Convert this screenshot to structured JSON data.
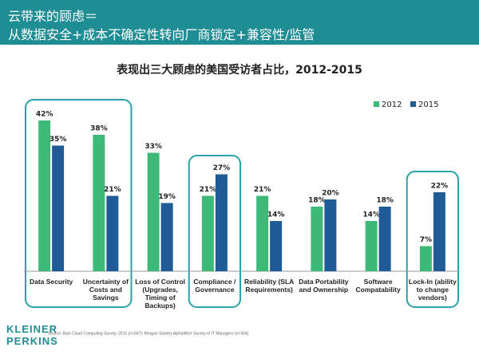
{
  "chart_data": {
    "type": "bar",
    "heading": [
      "云带来的顾虑＝",
      "从数据安全+成本不确定性转向厂商锁定+兼容性/监管"
    ],
    "title": "表现出三大顾虑的美国受访者占比，2012-2015",
    "categories": [
      "Data Security",
      "Uncertainty of Costs and Savings",
      "Loss of Control (Upgrades, Timing of Backups)",
      "Compliance / Governance",
      "Reliability (SLA Requirements)",
      "Data Portability and Ownership",
      "Software Compatability",
      "Lock-In (ability to change vendors)"
    ],
    "series": [
      {
        "name": "2012",
        "color": "#3dba78",
        "values": [
          42,
          38,
          33,
          21,
          21,
          18,
          14,
          7
        ],
        "value_labels": [
          "42%",
          "38%",
          "33%",
          "21%",
          "21%",
          "18%",
          "14%",
          "7%"
        ]
      },
      {
        "name": "2015",
        "color": "#1f5b96",
        "values": [
          35,
          21,
          19,
          27,
          14,
          20,
          18,
          22
        ],
        "value_labels": [
          "35%",
          "21%",
          "19%",
          "27%",
          "14%",
          "20%",
          "18%",
          "22%"
        ]
      }
    ],
    "legend": "top-right",
    "source": "Source: Bain Cloud Computing Survey, 2015 (n=347); Morgan Stanley AlphaWise Survey of IT Managers (n=304)",
    "logo": [
      "KLEINER",
      "PERKINS"
    ]
  }
}
